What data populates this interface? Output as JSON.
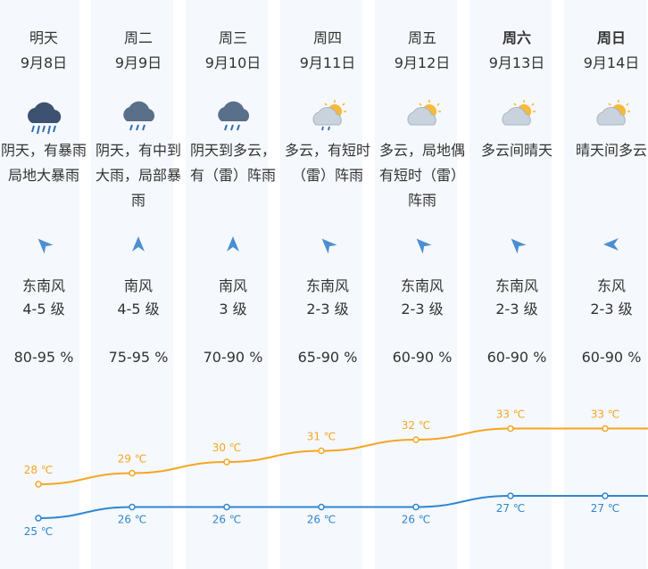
{
  "colors": {
    "high_line": "#f5a623",
    "low_line": "#2f86d0",
    "column_bg": "#f5f8fc",
    "text": "#333333"
  },
  "days": [
    {
      "name": "明天",
      "bold": false,
      "date": "9月8日",
      "icon": "heavy-rain-cloud-icon",
      "desc": "阴天，有暴雨局地大暴雨",
      "wind_icon": "wind-arrow-southeast-icon",
      "wind_dir": "东南风",
      "wind_level": "4-5 级",
      "humidity": "80-95 %",
      "high": "28 ℃",
      "low": "25 ℃"
    },
    {
      "name": "周二",
      "bold": false,
      "date": "9月9日",
      "icon": "rain-cloud-icon",
      "desc": "阴天，有中到大雨，局部暴雨",
      "wind_icon": "wind-arrow-south-icon",
      "wind_dir": "南风",
      "wind_level": "4-5 级",
      "humidity": "75-95 %",
      "high": "29 ℃",
      "low": "26 ℃"
    },
    {
      "name": "周三",
      "bold": false,
      "date": "9月10日",
      "icon": "rain-cloud-icon",
      "desc": "阴天到多云，有（雷）阵雨",
      "wind_icon": "wind-arrow-south-icon",
      "wind_dir": "南风",
      "wind_level": "3 级",
      "humidity": "70-90 %",
      "high": "30 ℃",
      "low": "26 ℃"
    },
    {
      "name": "周四",
      "bold": false,
      "date": "9月11日",
      "icon": "sun-cloud-rain-icon",
      "desc": "多云，有短时（雷）阵雨",
      "wind_icon": "wind-arrow-southeast-icon",
      "wind_dir": "东南风",
      "wind_level": "2-3 级",
      "humidity": "65-90 %",
      "high": "31 ℃",
      "low": "26 ℃"
    },
    {
      "name": "周五",
      "bold": false,
      "date": "9月12日",
      "icon": "sun-cloud-icon",
      "desc": "多云，局地偶有短时（雷）阵雨",
      "wind_icon": "wind-arrow-southeast-icon",
      "wind_dir": "东南风",
      "wind_level": "2-3 级",
      "humidity": "60-90 %",
      "high": "32 ℃",
      "low": "26 ℃"
    },
    {
      "name": "周六",
      "bold": true,
      "date": "9月13日",
      "icon": "sun-cloud-icon",
      "desc": "多云间晴天",
      "wind_icon": "wind-arrow-southeast-icon",
      "wind_dir": "东南风",
      "wind_level": "2-3 级",
      "humidity": "60-90 %",
      "high": "33 ℃",
      "low": "27 ℃"
    },
    {
      "name": "周日",
      "bold": true,
      "date": "9月14日",
      "icon": "sun-cloud-icon",
      "desc": "晴天间多云",
      "wind_icon": "wind-arrow-east-icon",
      "wind_dir": "东风",
      "wind_level": "2-3 级",
      "humidity": "60-90 %",
      "high": "33 ℃",
      "low": "27 ℃"
    }
  ],
  "chart_data": {
    "type": "line",
    "categories": [
      "9月8日",
      "9月9日",
      "9月10日",
      "9月11日",
      "9月12日",
      "9月13日",
      "9月14日"
    ],
    "series": [
      {
        "values": [
          28,
          29,
          30,
          31,
          32,
          33,
          33
        ]
      },
      {
        "values": [
          25,
          26,
          26,
          26,
          26,
          27,
          27
        ]
      }
    ],
    "ylabel": "℃"
  }
}
